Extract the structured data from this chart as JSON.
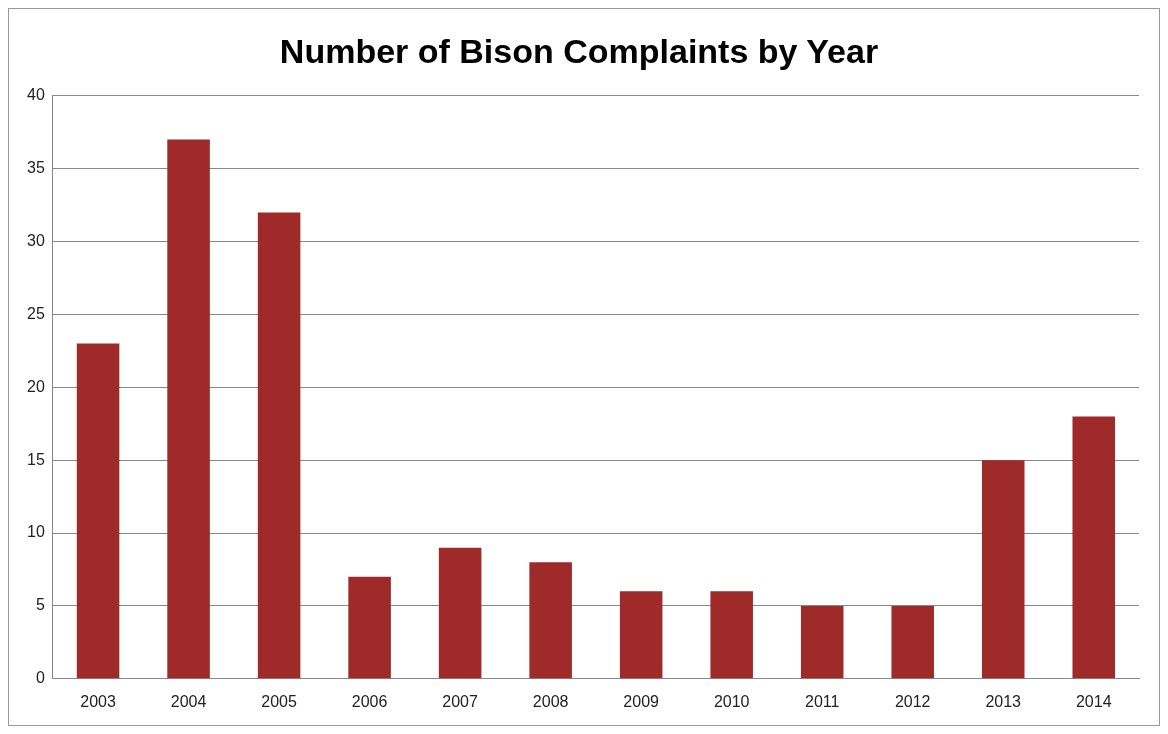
{
  "chart_data": {
    "type": "bar",
    "title": "Number of Bison Complaints by Year",
    "categories": [
      "2003",
      "2004",
      "2005",
      "2006",
      "2007",
      "2008",
      "2009",
      "2010",
      "2011",
      "2012",
      "2013",
      "2014"
    ],
    "values": [
      23,
      37,
      32,
      7,
      9,
      8,
      6,
      6,
      5,
      5,
      15,
      18
    ],
    "color": "#9e2a2a",
    "ylim": [
      0,
      40
    ],
    "yticks": [
      0,
      5,
      10,
      15,
      20,
      25,
      30,
      35,
      40
    ],
    "grid": "y",
    "legend": false
  }
}
